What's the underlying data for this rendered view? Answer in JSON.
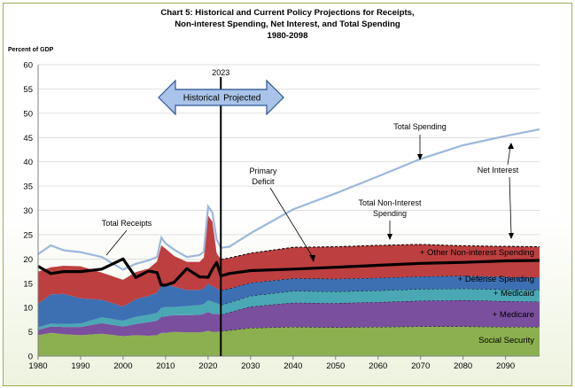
{
  "title_lines": [
    "Chart 5:  Historical and Current Policy Projections for Receipts,",
    "Non-interest Spending, Net Interest, and Total Spending",
    "1980-2098"
  ],
  "chart_data": {
    "type": "area",
    "title": "Chart 5:  Historical and Current Policy Projections for Receipts, Non-interest Spending, Net Interest, and Total Spending 1980-2098",
    "ylabel": "Percent of GDP",
    "xlabel": "",
    "xlim": [
      1980,
      2098
    ],
    "ylim": [
      0,
      60
    ],
    "yticks": [
      0,
      5,
      10,
      15,
      20,
      25,
      30,
      35,
      40,
      45,
      50,
      55,
      60
    ],
    "xticks": [
      1980,
      1990,
      2000,
      2010,
      2020,
      2030,
      2040,
      2050,
      2060,
      2070,
      2080,
      2090
    ],
    "grid": true,
    "split_year": 2023,
    "split_label": "2023",
    "historical_label": "Historical",
    "projected_label": "Projected",
    "x": [
      1980,
      1983,
      1986,
      1990,
      1995,
      2000,
      2003,
      2006,
      2008,
      2009,
      2010,
      2012,
      2015,
      2018,
      2019,
      2020,
      2021,
      2022,
      2023,
      2025,
      2030,
      2040,
      2050,
      2060,
      2070,
      2080,
      2090,
      2098
    ],
    "stack": [
      {
        "name": "Social Security",
        "label": "Social Security",
        "color": "#8cb050",
        "values": [
          4.3,
          4.8,
          4.5,
          4.3,
          4.6,
          4.1,
          4.3,
          4.2,
          4.3,
          4.8,
          4.8,
          5.0,
          4.9,
          4.9,
          5.0,
          5.2,
          5.0,
          5.0,
          5.1,
          5.3,
          5.8,
          6.0,
          5.9,
          6.0,
          6.1,
          6.1,
          6.0,
          6.0
        ]
      },
      {
        "name": "Medicare",
        "label": "+  Medicare",
        "color": "#7a4f9e",
        "values": [
          1.1,
          1.3,
          1.5,
          1.7,
          2.2,
          2.0,
          2.3,
          2.8,
          3.0,
          3.3,
          3.4,
          3.4,
          3.5,
          3.6,
          3.7,
          3.9,
          3.7,
          3.7,
          3.4,
          3.7,
          4.4,
          5.0,
          5.0,
          5.1,
          5.3,
          5.4,
          5.3,
          5.2
        ]
      },
      {
        "name": "Medicaid",
        "label": "+ Medicaid",
        "color": "#4aa8b4",
        "values": [
          0.5,
          0.6,
          0.6,
          0.7,
          1.2,
          1.2,
          1.5,
          1.5,
          1.6,
          1.8,
          1.9,
          1.7,
          1.9,
          2.0,
          2.0,
          2.4,
          2.5,
          2.2,
          2.0,
          2.0,
          2.2,
          2.4,
          2.4,
          2.4,
          2.4,
          2.4,
          2.4,
          2.4
        ]
      },
      {
        "name": "Defense Spending",
        "label": "+ Defense Spending",
        "color": "#3d6fb3",
        "values": [
          4.9,
          6.0,
          6.2,
          5.2,
          3.6,
          2.9,
          3.6,
          3.9,
          4.2,
          4.6,
          4.7,
          4.2,
          3.3,
          3.1,
          3.2,
          3.4,
          3.2,
          3.0,
          3.0,
          2.9,
          2.7,
          2.6,
          2.6,
          2.6,
          2.6,
          2.6,
          2.6,
          2.6
        ]
      },
      {
        "name": "Other Non-interest Spending",
        "label": "+ Other Non-interest Spending",
        "color": "#bd3f40",
        "values": [
          6.6,
          5.6,
          5.8,
          6.6,
          5.6,
          5.5,
          5.6,
          5.6,
          6.4,
          8.3,
          7.3,
          6.3,
          5.8,
          5.8,
          6.4,
          14.0,
          13.3,
          7.3,
          6.4,
          6.3,
          6.1,
          6.4,
          6.6,
          6.7,
          6.6,
          6.2,
          6.3,
          6.3
        ]
      }
    ],
    "total_non_interest": [
      17.4,
      18.3,
      18.6,
      18.5,
      17.2,
      15.7,
      17.3,
      18.0,
      19.5,
      22.8,
      22.1,
      20.6,
      19.4,
      19.4,
      20.3,
      28.9,
      27.7,
      21.2,
      19.9,
      20.2,
      21.2,
      22.4,
      22.5,
      22.8,
      23.0,
      22.7,
      22.6,
      22.5
    ],
    "total_spending": [
      21.0,
      22.8,
      21.8,
      21.4,
      20.4,
      17.8,
      19.0,
      19.7,
      20.4,
      24.4,
      23.2,
      21.9,
      20.4,
      20.8,
      21.5,
      30.8,
      29.6,
      24.0,
      22.3,
      22.5,
      25.3,
      30.2,
      33.5,
      37.0,
      40.6,
      43.4,
      45.3,
      46.7
    ],
    "total_receipts": [
      18.5,
      17.0,
      17.4,
      17.4,
      17.9,
      20.0,
      16.2,
      17.5,
      17.2,
      14.6,
      14.6,
      15.2,
      18.0,
      16.3,
      16.3,
      16.2,
      17.9,
      19.3,
      16.5,
      17.0,
      17.6,
      17.9,
      18.3,
      18.7,
      19.1,
      19.3,
      19.6,
      19.7
    ],
    "annotations": {
      "total_receipts": "Total Receipts",
      "primary_deficit": [
        "Primary",
        "Deficit"
      ],
      "total_non_interest": [
        "Total Non-Interest",
        "Spending"
      ],
      "total_spending": "Total Spending",
      "net_interest": "Net Interest"
    },
    "colors": {
      "total_spending_line": "#9bb7dd",
      "receipts_line": "#000000",
      "gridline": "#d0d0d0",
      "arrow_fill": "#a9c4e8",
      "arrow_stroke": "#2f5597"
    }
  }
}
